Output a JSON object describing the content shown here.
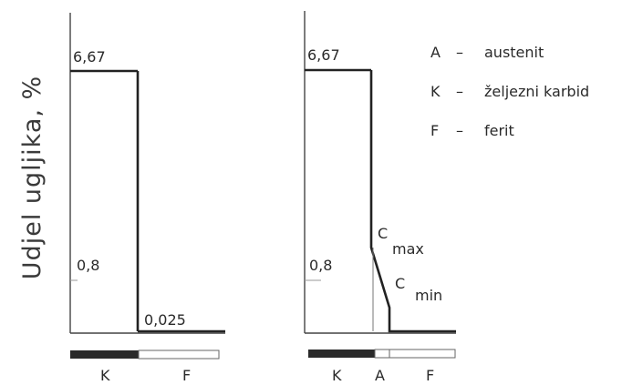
{
  "y_axis_label": "Udjel ugljika, %",
  "left_panel": {
    "value_top": "6,67",
    "value_mid": "0,8",
    "value_low": "0,025",
    "bar_labels": [
      "K",
      "F"
    ]
  },
  "right_panel": {
    "value_top": "6,67",
    "value_mid": "0,8",
    "c_max_letter": "C",
    "c_max_sub": "max",
    "c_min_letter": "C",
    "c_min_sub": "min",
    "bar_labels": [
      "K",
      "A",
      "F"
    ]
  },
  "legend": [
    {
      "key": "A",
      "dash": "–",
      "text": "austenit"
    },
    {
      "key": "K",
      "dash": "–",
      "text": "željezni karbid"
    },
    {
      "key": "F",
      "dash": "–",
      "text": "ferit"
    }
  ],
  "colors": {
    "line": "#222222",
    "bar_dark": "#2a2a2a",
    "bar_light": "#ffffff"
  }
}
